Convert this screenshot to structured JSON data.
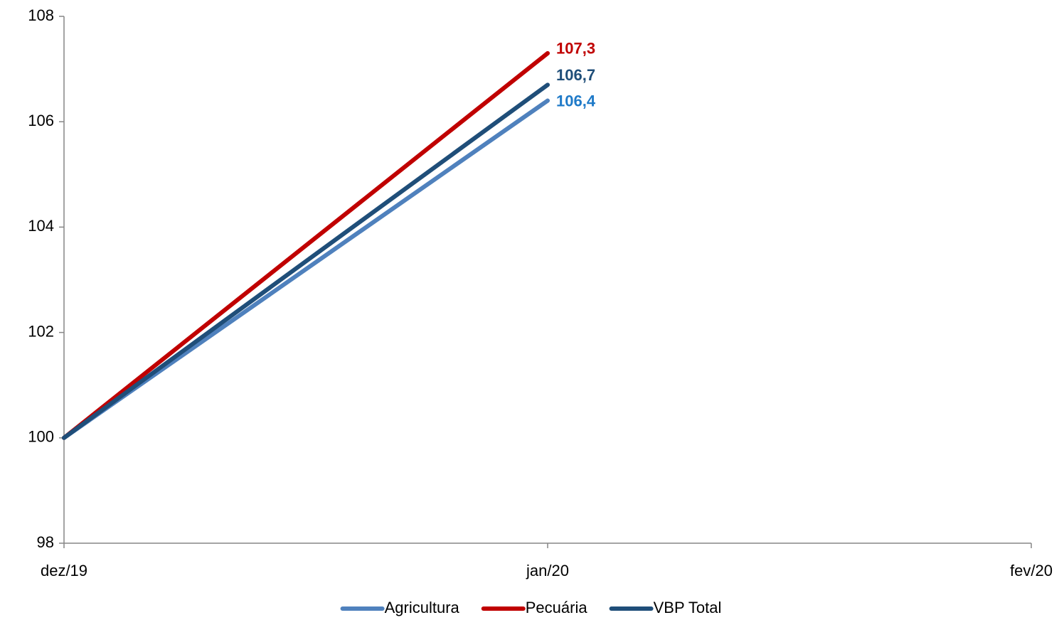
{
  "chart_data": {
    "type": "line",
    "categories": [
      "dez/19",
      "jan/20",
      "fev/20"
    ],
    "series": [
      {
        "name": "Agricultura",
        "color": "#4f81bd",
        "label_color": "#1f7ac8",
        "values": [
          100,
          106.4,
          null
        ],
        "value_labels": [
          null,
          "106,4",
          null
        ]
      },
      {
        "name": "Pecuária",
        "color": "#c00000",
        "label_color": "#c00000",
        "values": [
          100,
          107.3,
          null
        ],
        "value_labels": [
          null,
          "107,3",
          null
        ]
      },
      {
        "name": "VBP Total",
        "color": "#1f4e79",
        "label_color": "#1f4e79",
        "values": [
          100,
          106.7,
          null
        ],
        "value_labels": [
          null,
          "106,7",
          null
        ]
      }
    ],
    "ylim": [
      98,
      108
    ],
    "yticks": [
      98,
      100,
      102,
      104,
      106,
      108
    ],
    "grid": false,
    "legend": "bottom"
  }
}
